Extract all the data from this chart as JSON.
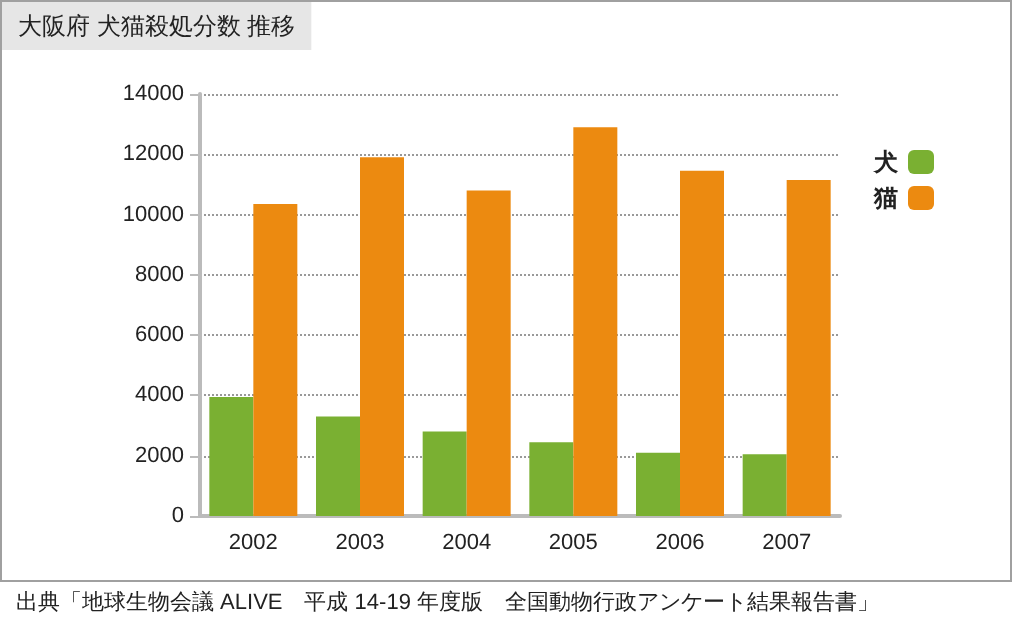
{
  "chart_data": {
    "type": "bar",
    "title": "大阪府 犬猫殺処分数 推移",
    "categories": [
      "2002",
      "2003",
      "2004",
      "2005",
      "2006",
      "2007"
    ],
    "series": [
      {
        "name": "犬",
        "color": "#7ab032",
        "values": [
          3950,
          3300,
          2800,
          2450,
          2100,
          2050
        ]
      },
      {
        "name": "猫",
        "color": "#ec8a10",
        "values": [
          10350,
          11900,
          10800,
          12900,
          11450,
          11150
        ]
      }
    ],
    "ylim": [
      0,
      14000
    ],
    "yticks": [
      0,
      2000,
      4000,
      6000,
      8000,
      10000,
      12000,
      14000
    ],
    "grid": "y",
    "legend": "right",
    "annotations": [
      "出典「地球生物会議 ALIVE　平成 14-19 年度版　全国動物行政アンケート結果報告書」"
    ]
  }
}
